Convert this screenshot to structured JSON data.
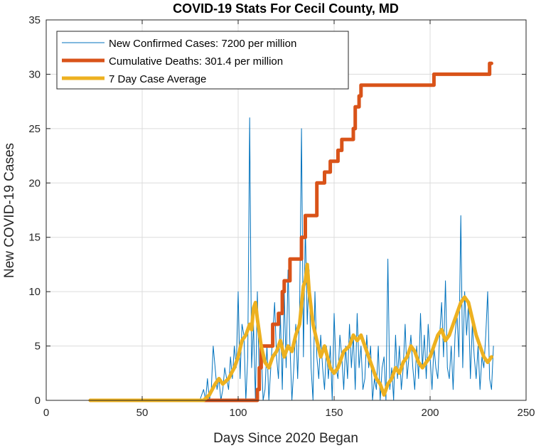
{
  "chart_data": {
    "type": "line",
    "title": "COVID-19 Stats For Cecil County, MD",
    "xlabel": "Days Since 2020 Began",
    "ylabel": "New COVID-19 Cases",
    "xlim": [
      0,
      250
    ],
    "ylim": [
      0,
      35
    ],
    "xticks": [
      0,
      50,
      100,
      150,
      200,
      250
    ],
    "yticks": [
      0,
      5,
      10,
      15,
      20,
      25,
      30,
      35
    ],
    "grid": true,
    "legend_position": "top-left",
    "series": [
      {
        "name": "New Confirmed Cases: 7200 per million",
        "color": "#0072BD",
        "x": [
          23,
          30,
          40,
          50,
          60,
          70,
          80,
          82,
          83,
          84,
          85,
          86,
          87,
          88,
          89,
          90,
          91,
          92,
          93,
          94,
          95,
          96,
          97,
          98,
          99,
          100,
          101,
          102,
          103,
          104,
          105,
          106,
          107,
          108,
          109,
          110,
          111,
          112,
          113,
          114,
          115,
          116,
          117,
          118,
          119,
          120,
          121,
          122,
          123,
          124,
          125,
          126,
          127,
          128,
          129,
          130,
          131,
          132,
          133,
          134,
          135,
          136,
          137,
          138,
          139,
          140,
          141,
          142,
          143,
          144,
          145,
          146,
          147,
          148,
          149,
          150,
          151,
          152,
          153,
          154,
          155,
          156,
          157,
          158,
          159,
          160,
          161,
          162,
          163,
          164,
          165,
          166,
          167,
          168,
          169,
          170,
          171,
          172,
          173,
          174,
          175,
          176,
          177,
          178,
          179,
          180,
          181,
          182,
          183,
          184,
          185,
          186,
          187,
          188,
          189,
          190,
          191,
          192,
          193,
          194,
          195,
          196,
          197,
          198,
          199,
          200,
          201,
          202,
          203,
          204,
          205,
          206,
          207,
          208,
          209,
          210,
          211,
          212,
          213,
          214,
          215,
          216,
          217,
          218,
          219,
          220,
          221,
          222,
          223,
          224,
          225,
          226,
          227,
          228,
          229,
          230,
          231,
          232,
          233
        ],
        "y": [
          0,
          0,
          0,
          0,
          0,
          0,
          0,
          1,
          0,
          2,
          0,
          1,
          5,
          3,
          1,
          2,
          0,
          1,
          3,
          2,
          1,
          4,
          2,
          5,
          3,
          10,
          2,
          7,
          6,
          0,
          4,
          26,
          3,
          7,
          0,
          10,
          2,
          5,
          0,
          1,
          5,
          0,
          3,
          6,
          9,
          4,
          2,
          8,
          1,
          10,
          3,
          12,
          5,
          0,
          3,
          7,
          2,
          8,
          25,
          4,
          16,
          7,
          12,
          3,
          0,
          10,
          4,
          2,
          6,
          3,
          1,
          5,
          2,
          5,
          0,
          8,
          3,
          2,
          6,
          4,
          1,
          5,
          2,
          7,
          3,
          6,
          1,
          8,
          3,
          5,
          1,
          2,
          6,
          3,
          5,
          0,
          2,
          1,
          5,
          0,
          3,
          4,
          0,
          13,
          1,
          3,
          0,
          6,
          2,
          5,
          1,
          3,
          7,
          2,
          4,
          6,
          3,
          1,
          5,
          2,
          8,
          3,
          6,
          2,
          7,
          4,
          1,
          5,
          3,
          2,
          6,
          9,
          4,
          11,
          3,
          2,
          5,
          1,
          6,
          8,
          4,
          17,
          3,
          10,
          6,
          9,
          2,
          7,
          4,
          2,
          5,
          1,
          4,
          3,
          6,
          10,
          2,
          1,
          5
        ],
        "line_width": 1
      },
      {
        "name": "Cumulative Deaths: 301.4 per million",
        "color": "#D95319",
        "x": [
          23,
          92,
          93,
          108,
          110,
          111,
          112,
          114,
          117,
          118,
          121,
          123,
          124,
          127,
          132,
          133,
          135,
          137,
          140,
          141,
          143,
          145,
          148,
          150,
          152,
          154,
          158,
          160,
          161,
          163,
          164,
          165,
          200,
          202,
          203,
          230,
          231,
          232
        ],
        "y": [
          0,
          0,
          0,
          0,
          1,
          3,
          5,
          5,
          5,
          7,
          8,
          10,
          11,
          13,
          13,
          15,
          17,
          17,
          17,
          20,
          20,
          21,
          22,
          22,
          23,
          24,
          24,
          25,
          27,
          28,
          29,
          29,
          29,
          30,
          30,
          30,
          31,
          31
        ],
        "line_width": 5
      },
      {
        "name": "7 Day Case Average",
        "color": "#EDB120",
        "x": [
          23,
          82,
          85,
          88,
          90,
          92,
          95,
          98,
          100,
          102,
          104,
          106,
          107,
          108,
          109,
          110,
          112,
          114,
          116,
          118,
          120,
          122,
          124,
          126,
          128,
          130,
          132,
          134,
          135,
          136,
          137,
          139,
          141,
          143,
          145,
          148,
          150,
          152,
          155,
          158,
          160,
          162,
          164,
          166,
          168,
          170,
          172,
          174,
          176,
          178,
          180,
          182,
          184,
          186,
          188,
          190,
          192,
          194,
          196,
          198,
          200,
          202,
          204,
          206,
          208,
          210,
          212,
          214,
          216,
          218,
          220,
          222,
          224,
          226,
          228,
          230,
          232
        ],
        "y": [
          0,
          0,
          0.5,
          1.5,
          2,
          1.5,
          2,
          3,
          4,
          5.5,
          6,
          7,
          6.5,
          8.5,
          9,
          7.5,
          5,
          3.5,
          3,
          4,
          4.5,
          5.5,
          4,
          5,
          4.5,
          6,
          7,
          10.5,
          11,
          12.5,
          10,
          7,
          5.5,
          4,
          5,
          3,
          2.5,
          3,
          4.5,
          5,
          6,
          5.5,
          6,
          5,
          4,
          3,
          2,
          1.5,
          0.5,
          1.5,
          2,
          3,
          2.5,
          3.5,
          4,
          5,
          4.5,
          3.5,
          3,
          3.5,
          4,
          5,
          6,
          6.5,
          5.5,
          6,
          7,
          8,
          9,
          9.5,
          9,
          7.5,
          6,
          5,
          4,
          3.5,
          4
        ],
        "line_width": 5
      }
    ]
  }
}
